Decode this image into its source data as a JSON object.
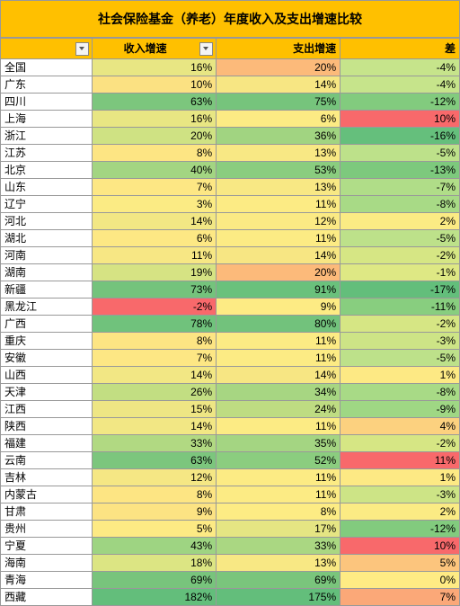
{
  "title": "社会保险基金（养老）年度收入及支出增速比较",
  "columns": {
    "name": "",
    "income": "收入增速",
    "expense": "支出增速",
    "diff": "差"
  },
  "gradient": {
    "green_hi": "#63be7b",
    "green_mid": "#b5e08a",
    "yellow": "#ffeb84",
    "orange": "#fdc07c",
    "red": "#f8696b"
  },
  "rows": [
    {
      "name": "全国",
      "in": 16,
      "out": 20,
      "diff": -4,
      "c_in": "#e8e683",
      "c_out": "#fcba7a",
      "c_diff": "#c6e48b"
    },
    {
      "name": "广东",
      "in": 10,
      "out": 14,
      "diff": -4,
      "c_in": "#fbe182",
      "c_out": "#f7e683",
      "c_diff": "#c6e48b"
    },
    {
      "name": "四川",
      "in": 63,
      "out": 75,
      "diff": -12,
      "c_in": "#7cc67d",
      "c_out": "#76c47c",
      "c_diff": "#82cb7e"
    },
    {
      "name": "上海",
      "in": 16,
      "out": 6,
      "diff": 10,
      "c_in": "#e8e683",
      "c_out": "#fceb84",
      "c_diff": "#f8696b"
    },
    {
      "name": "浙江",
      "in": 20,
      "out": 36,
      "diff": -16,
      "c_in": "#cfe283",
      "c_out": "#a1d481",
      "c_diff": "#65bf7c"
    },
    {
      "name": "江苏",
      "in": 8,
      "out": 13,
      "diff": -5,
      "c_in": "#fde583",
      "c_out": "#f8e884",
      "c_diff": "#bde18a"
    },
    {
      "name": "北京",
      "in": 40,
      "out": 53,
      "diff": -13,
      "c_in": "#a3d582",
      "c_out": "#8acd7f",
      "c_diff": "#7dc97d"
    },
    {
      "name": "山东",
      "in": 7,
      "out": 13,
      "diff": -7,
      "c_in": "#fde784",
      "c_out": "#f8e884",
      "c_diff": "#b0dd88"
    },
    {
      "name": "辽宁",
      "in": 3,
      "out": 11,
      "diff": -8,
      "c_in": "#fbeb84",
      "c_out": "#fceb84",
      "c_diff": "#a8da86"
    },
    {
      "name": "河北",
      "in": 14,
      "out": 12,
      "diff": 2,
      "c_in": "#f2e784",
      "c_out": "#fbea84",
      "c_diff": "#fbeb84"
    },
    {
      "name": "湖北",
      "in": 6,
      "out": 11,
      "diff": -5,
      "c_in": "#fde884",
      "c_out": "#fceb84",
      "c_diff": "#bde18a"
    },
    {
      "name": "河南",
      "in": 11,
      "out": 14,
      "diff": -2,
      "c_in": "#f7e784",
      "c_out": "#f7e683",
      "c_diff": "#d6e684"
    },
    {
      "name": "湖南",
      "in": 19,
      "out": 20,
      "diff": -1,
      "c_in": "#d6e383",
      "c_out": "#fcba7a",
      "c_diff": "#dee884"
    },
    {
      "name": "新疆",
      "in": 73,
      "out": 91,
      "diff": -17,
      "c_in": "#74c37c",
      "c_out": "#6ac17c",
      "c_diff": "#63be7b"
    },
    {
      "name": "黑龙江",
      "in": -2,
      "out": 9,
      "diff": -11,
      "c_in": "#f8696b",
      "c_out": "#fdeb84",
      "c_diff": "#88ce7f"
    },
    {
      "name": "广西",
      "in": 78,
      "out": 80,
      "diff": -2,
      "c_in": "#70c27c",
      "c_out": "#72c27c",
      "c_diff": "#d6e684"
    },
    {
      "name": "重庆",
      "in": 8,
      "out": 11,
      "diff": -3,
      "c_in": "#fde583",
      "c_out": "#fceb84",
      "c_diff": "#cde486"
    },
    {
      "name": "安徽",
      "in": 7,
      "out": 11,
      "diff": -5,
      "c_in": "#fde784",
      "c_out": "#fceb84",
      "c_diff": "#bde18a"
    },
    {
      "name": "山西",
      "in": 14,
      "out": 14,
      "diff": 1,
      "c_in": "#f2e784",
      "c_out": "#f7e683",
      "c_diff": "#fde984"
    },
    {
      "name": "天津",
      "in": 26,
      "out": 34,
      "diff": -8,
      "c_in": "#c2de82",
      "c_out": "#a7d682",
      "c_diff": "#a8da86"
    },
    {
      "name": "江西",
      "in": 15,
      "out": 24,
      "diff": -9,
      "c_in": "#eee684",
      "c_out": "#bedc82",
      "c_diff": "#9fd784"
    },
    {
      "name": "陕西",
      "in": 14,
      "out": 11,
      "diff": 4,
      "c_in": "#f2e784",
      "c_out": "#fceb84",
      "c_diff": "#fcd17f"
    },
    {
      "name": "福建",
      "in": 33,
      "out": 35,
      "diff": -2,
      "c_in": "#b1d982",
      "c_out": "#a4d582",
      "c_diff": "#d6e684"
    },
    {
      "name": "云南",
      "in": 63,
      "out": 52,
      "diff": 11,
      "c_in": "#7cc67d",
      "c_out": "#8bcd7f",
      "c_diff": "#f8696b"
    },
    {
      "name": "吉林",
      "in": 12,
      "out": 11,
      "diff": 1,
      "c_in": "#f5e784",
      "c_out": "#fceb84",
      "c_diff": "#fde984"
    },
    {
      "name": "内蒙古",
      "in": 8,
      "out": 11,
      "diff": -3,
      "c_in": "#fde583",
      "c_out": "#fceb84",
      "c_diff": "#cde486"
    },
    {
      "name": "甘肃",
      "in": 9,
      "out": 8,
      "diff": 2,
      "c_in": "#fce383",
      "c_out": "#fdec84",
      "c_diff": "#fbeb84"
    },
    {
      "name": "贵州",
      "in": 5,
      "out": 17,
      "diff": -12,
      "c_in": "#fdea84",
      "c_out": "#e5e583",
      "c_diff": "#82cb7e"
    },
    {
      "name": "宁夏",
      "in": 43,
      "out": 33,
      "diff": 10,
      "c_in": "#9ed482",
      "c_out": "#aad782",
      "c_diff": "#f8696b"
    },
    {
      "name": "海南",
      "in": 18,
      "out": 13,
      "diff": 5,
      "c_in": "#dce583",
      "c_out": "#f8e884",
      "c_diff": "#fcc57d"
    },
    {
      "name": "青海",
      "in": 69,
      "out": 69,
      "diff": 0,
      "c_in": "#78c47c",
      "c_out": "#7ac57c",
      "c_diff": "#ffeb84"
    },
    {
      "name": "西藏",
      "in": 182,
      "out": 175,
      "diff": 7,
      "c_in": "#63be7b",
      "c_out": "#63be7b",
      "c_diff": "#fba878"
    }
  ]
}
